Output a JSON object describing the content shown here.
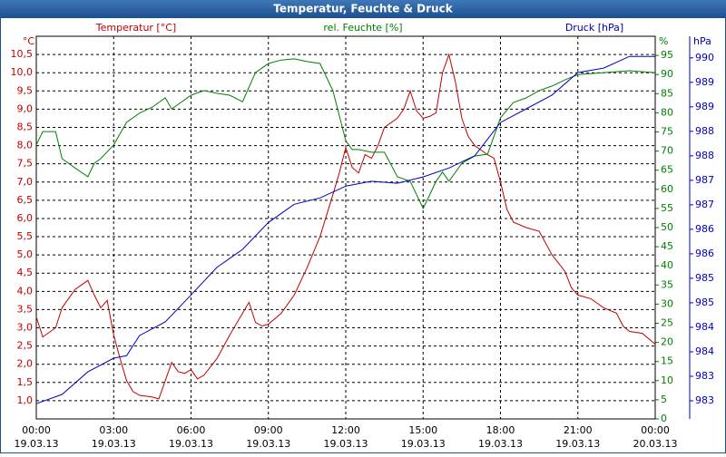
{
  "chart_data": {
    "type": "line",
    "title": "Temperatur, Feuchte & Druck",
    "y_unit": "°C",
    "y2_unit": "%",
    "y3_unit": "hPa",
    "xlim": [
      0,
      24
    ],
    "xticks": [
      {
        "value": 0,
        "label": "00:00"
      },
      {
        "value": 3,
        "label": "03:00"
      },
      {
        "value": 6,
        "label": "06:00"
      },
      {
        "value": 9,
        "label": "09:00"
      },
      {
        "value": 12,
        "label": "12:00"
      },
      {
        "value": 15,
        "label": "15:00"
      },
      {
        "value": 18,
        "label": "18:00"
      },
      {
        "value": 21,
        "label": "21:00"
      },
      {
        "value": 24,
        "label": "00:00"
      }
    ],
    "xtick_dates": [
      "19.03.13",
      "19.03.13",
      "19.03.13",
      "19.03.13",
      "19.03.13",
      "19.03.13",
      "19.03.13",
      "19.03.13",
      "20.03.13"
    ],
    "ylim": [
      0.5,
      11.0
    ],
    "yticks": [
      {
        "value": 1.0,
        "label": "1,0"
      },
      {
        "value": 1.5,
        "label": "1,5"
      },
      {
        "value": 2.0,
        "label": "2,0"
      },
      {
        "value": 2.5,
        "label": "2,5"
      },
      {
        "value": 3.0,
        "label": "3,0"
      },
      {
        "value": 3.5,
        "label": "3,5"
      },
      {
        "value": 4.0,
        "label": "4,0"
      },
      {
        "value": 4.5,
        "label": "4,5"
      },
      {
        "value": 5.0,
        "label": "5,0"
      },
      {
        "value": 5.5,
        "label": "5,5"
      },
      {
        "value": 6.0,
        "label": "6,0"
      },
      {
        "value": 6.5,
        "label": "6,5"
      },
      {
        "value": 7.0,
        "label": "7,0"
      },
      {
        "value": 7.5,
        "label": "7,5"
      },
      {
        "value": 8.0,
        "label": "8,0"
      },
      {
        "value": 8.5,
        "label": "8,5"
      },
      {
        "value": 9.0,
        "label": "9,0"
      },
      {
        "value": 9.5,
        "label": "9,5"
      },
      {
        "value": 10.0,
        "label": "10,0"
      },
      {
        "value": 10.5,
        "label": "10,5"
      }
    ],
    "y2lim": [
      0,
      100
    ],
    "y2ticks": [
      0,
      5,
      10,
      15,
      20,
      25,
      30,
      35,
      40,
      45,
      50,
      55,
      60,
      65,
      70,
      75,
      80,
      85,
      90,
      95
    ],
    "y3lim": [
      982.38,
      990.19
    ],
    "y3ticks": [
      {
        "value": 982.75,
        "label": "983"
      },
      {
        "value": 983.25,
        "label": "983"
      },
      {
        "value": 983.75,
        "label": "984"
      },
      {
        "value": 984.25,
        "label": "984"
      },
      {
        "value": 984.75,
        "label": "985"
      },
      {
        "value": 985.25,
        "label": "985"
      },
      {
        "value": 985.75,
        "label": "986"
      },
      {
        "value": 986.25,
        "label": "986"
      },
      {
        "value": 986.75,
        "label": "987"
      },
      {
        "value": 987.25,
        "label": "987"
      },
      {
        "value": 987.75,
        "label": "988"
      },
      {
        "value": 988.25,
        "label": "988"
      },
      {
        "value": 988.75,
        "label": "989"
      },
      {
        "value": 989.25,
        "label": "989"
      },
      {
        "value": 989.75,
        "label": "990"
      }
    ],
    "grid": true,
    "series": [
      {
        "name": "Temperatur [°C]",
        "color": "#c00000",
        "axis": "y",
        "x": [
          0,
          0.25,
          0.75,
          1.0,
          1.5,
          2.0,
          2.25,
          2.5,
          2.75,
          3.0,
          3.25,
          3.5,
          3.75,
          4.0,
          4.5,
          4.75,
          5.0,
          5.25,
          5.5,
          5.75,
          6.0,
          6.25,
          6.5,
          7.0,
          7.5,
          8.0,
          8.25,
          8.5,
          8.75,
          9.0,
          9.5,
          10.0,
          10.5,
          11.0,
          11.5,
          11.75,
          12.0,
          12.25,
          12.5,
          12.75,
          13.0,
          13.25,
          13.5,
          14.0,
          14.25,
          14.5,
          14.75,
          15.0,
          15.25,
          15.5,
          15.75,
          16.0,
          16.25,
          16.5,
          16.75,
          17.0,
          17.5,
          17.75,
          18.0,
          18.25,
          18.5,
          19.0,
          19.5,
          20.0,
          20.5,
          20.75,
          21.0,
          21.5,
          22.0,
          22.5,
          22.75,
          23.0,
          23.5,
          24.0
        ],
        "values": [
          3.3,
          2.75,
          3.0,
          3.55,
          4.05,
          4.3,
          3.9,
          3.55,
          3.75,
          2.8,
          2.15,
          1.55,
          1.25,
          1.15,
          1.1,
          1.05,
          1.55,
          2.05,
          1.8,
          1.75,
          1.85,
          1.6,
          1.7,
          2.15,
          2.8,
          3.4,
          3.7,
          3.15,
          3.05,
          3.1,
          3.4,
          3.9,
          4.65,
          5.5,
          6.65,
          7.25,
          7.95,
          7.4,
          7.25,
          7.75,
          7.65,
          8.0,
          8.5,
          8.75,
          9.0,
          9.5,
          8.95,
          8.75,
          8.8,
          8.9,
          10.0,
          10.5,
          9.75,
          8.75,
          8.25,
          8.0,
          7.75,
          7.65,
          7.0,
          6.25,
          5.9,
          5.75,
          5.65,
          5.0,
          4.55,
          4.1,
          3.9,
          3.8,
          3.55,
          3.4,
          3.05,
          2.9,
          2.85,
          2.55
        ]
      },
      {
        "name": "rel. Feuchte [%]",
        "color": "#008000",
        "axis": "y2",
        "x": [
          0,
          0.25,
          0.75,
          1.0,
          1.5,
          2.0,
          2.25,
          2.5,
          3.0,
          3.5,
          4.0,
          4.5,
          5.0,
          5.25,
          5.5,
          6.0,
          6.5,
          7.0,
          7.5,
          8.0,
          8.5,
          9.0,
          9.5,
          10.0,
          10.5,
          11.0,
          11.5,
          12.0,
          12.25,
          12.5,
          13.0,
          13.5,
          14.0,
          14.5,
          15.0,
          15.25,
          15.5,
          15.75,
          16.0,
          16.5,
          17.0,
          17.5,
          18.0,
          18.5,
          19.0,
          19.5,
          20.0,
          20.5,
          21.0,
          22.0,
          23.0,
          24.0
        ],
        "values": [
          71.6,
          75.1,
          75.1,
          68,
          65.6,
          63.3,
          66.8,
          68,
          71.6,
          77.5,
          79.9,
          81.5,
          83.9,
          81,
          82.2,
          84.6,
          85.8,
          85.1,
          84.6,
          82.9,
          90.5,
          92.9,
          93.8,
          94.1,
          93.4,
          92.9,
          85.8,
          72.7,
          70.4,
          70.4,
          69.7,
          69.7,
          63.3,
          62.1,
          55,
          58.5,
          62.1,
          64.5,
          62.1,
          66.8,
          68.7,
          69.2,
          78.7,
          82.7,
          83.9,
          85.8,
          87,
          88.6,
          90,
          90.5,
          91,
          90.5
        ]
      },
      {
        "name": "Druck [hPa]",
        "color": "#0000c0",
        "axis": "y3",
        "x": [
          0,
          1,
          2,
          3,
          3.5,
          4,
          5,
          6,
          7,
          8,
          9,
          10,
          11,
          12,
          13,
          14,
          15,
          16,
          17,
          18,
          19,
          20,
          21,
          22,
          23,
          24
        ],
        "values": [
          982.69,
          982.88,
          983.34,
          983.62,
          983.67,
          984.08,
          984.36,
          984.91,
          985.47,
          985.84,
          986.39,
          986.76,
          986.89,
          987.13,
          987.23,
          987.19,
          987.32,
          987.5,
          987.75,
          988.43,
          988.71,
          988.99,
          989.45,
          989.54,
          989.78,
          989.78
        ]
      }
    ]
  }
}
